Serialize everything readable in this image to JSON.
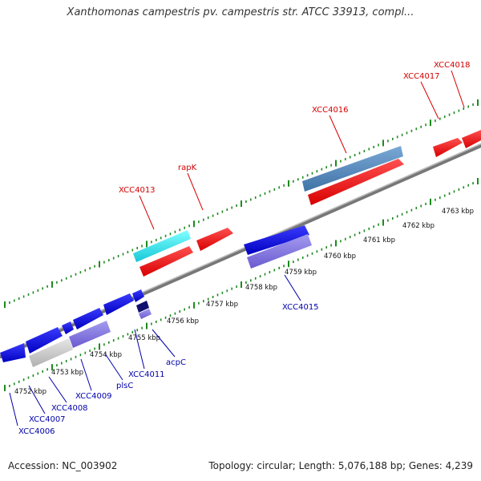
{
  "title": "Xanthomonas campestris pv. campestris str. ATCC 33913, compl...",
  "footer": {
    "accession": "Accession: NC_003902",
    "summary": "Topology: circular; Length: 5,076,188 bp; Genes: 4,239"
  },
  "colors": {
    "backbone": "#888888",
    "dots": "#1e8a1e",
    "forward_label": "#d40000",
    "reverse_label": "#0000aa"
  },
  "ruler": {
    "unit": "kbp",
    "ticks": [
      4752,
      4753,
      4754,
      4755,
      4756,
      4757,
      4758,
      4759,
      4760,
      4761,
      4762,
      4763
    ]
  },
  "forward_labels": [
    "XCC4013",
    "rapK",
    "XCC4016",
    "XCC4017",
    "XCC4018"
  ],
  "reverse_labels": [
    "XCC4006",
    "XCC4007",
    "XCC4008",
    "XCC4009",
    "plsC",
    "XCC4011",
    "acpC",
    "XCC4015"
  ]
}
